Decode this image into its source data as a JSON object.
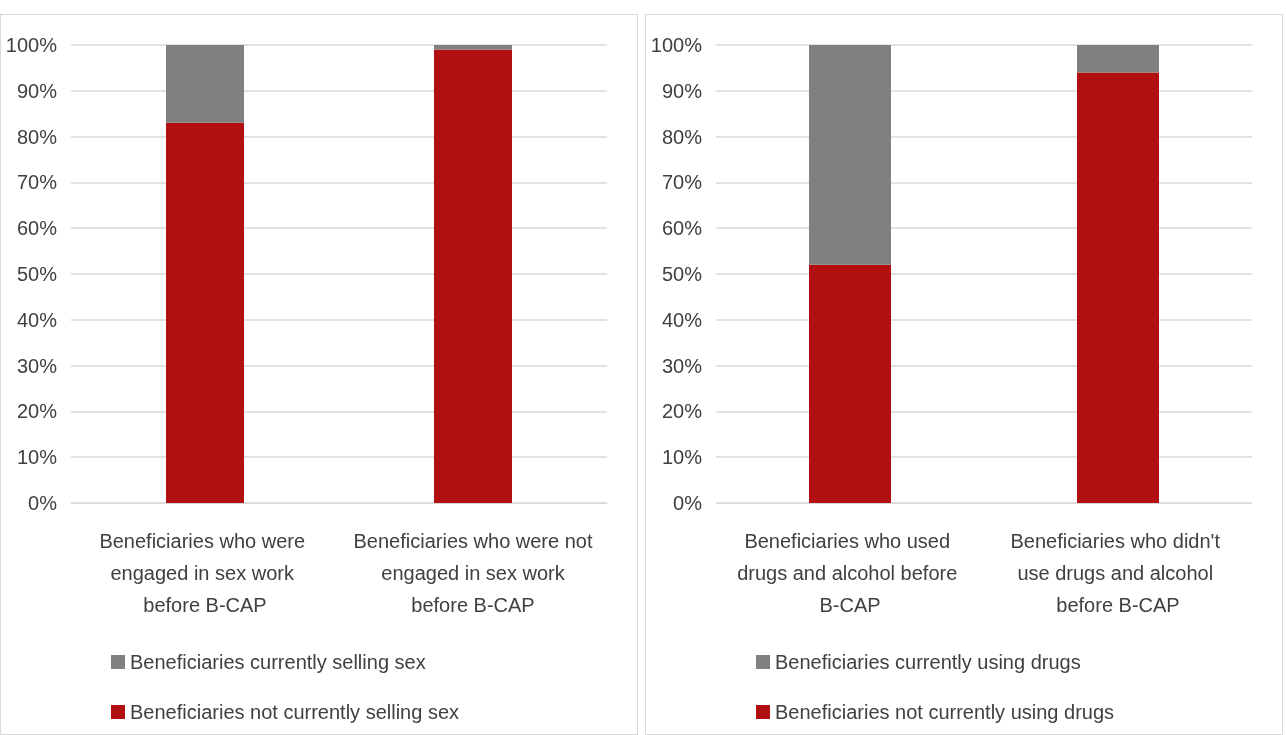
{
  "chart_data": [
    {
      "type": "bar",
      "stacked": true,
      "categories": [
        "Beneficiaries who were engaged in sex work before B-CAP",
        "Beneficiaries who were not engaged in sex work before B-CAP"
      ],
      "series": [
        {
          "name": "Beneficiaries not currently selling sex",
          "color": "#b20f10",
          "values": [
            83,
            99
          ]
        },
        {
          "name": "Beneficiaries currently selling sex",
          "color": "#808080",
          "values": [
            17,
            1
          ]
        }
      ],
      "ylim": [
        0,
        100
      ],
      "yticks": [
        {
          "value": 0,
          "label": "0%"
        },
        {
          "value": 10,
          "label": "10%"
        },
        {
          "value": 20,
          "label": "20%"
        },
        {
          "value": 30,
          "label": "30%"
        },
        {
          "value": 40,
          "label": "40%"
        },
        {
          "value": 50,
          "label": "50%"
        },
        {
          "value": 60,
          "label": "60%"
        },
        {
          "value": 70,
          "label": "70%"
        },
        {
          "value": 80,
          "label": "80%"
        },
        {
          "value": 90,
          "label": "90%"
        },
        {
          "value": 100,
          "label": "100%"
        }
      ],
      "grid": "y",
      "legend": "bottom"
    },
    {
      "type": "bar",
      "stacked": true,
      "categories": [
        "Beneficiaries who used drugs and alcohol before B-CAP",
        "Beneficiaries who didn't use drugs and alcohol before B-CAP"
      ],
      "series": [
        {
          "name": "Beneficiaries not currently using drugs",
          "color": "#b20f10",
          "values": [
            52,
            94
          ]
        },
        {
          "name": "Beneficiaries currently using drugs",
          "color": "#808080",
          "values": [
            48,
            6
          ]
        }
      ],
      "ylim": [
        0,
        100
      ],
      "yticks": [
        {
          "value": 0,
          "label": "0%"
        },
        {
          "value": 10,
          "label": "10%"
        },
        {
          "value": 20,
          "label": "20%"
        },
        {
          "value": 30,
          "label": "30%"
        },
        {
          "value": 40,
          "label": "40%"
        },
        {
          "value": 50,
          "label": "50%"
        },
        {
          "value": 60,
          "label": "60%"
        },
        {
          "value": 70,
          "label": "70%"
        },
        {
          "value": 80,
          "label": "80%"
        },
        {
          "value": 90,
          "label": "90%"
        },
        {
          "value": 100,
          "label": "100%"
        }
      ],
      "grid": "y",
      "legend": "bottom"
    }
  ]
}
